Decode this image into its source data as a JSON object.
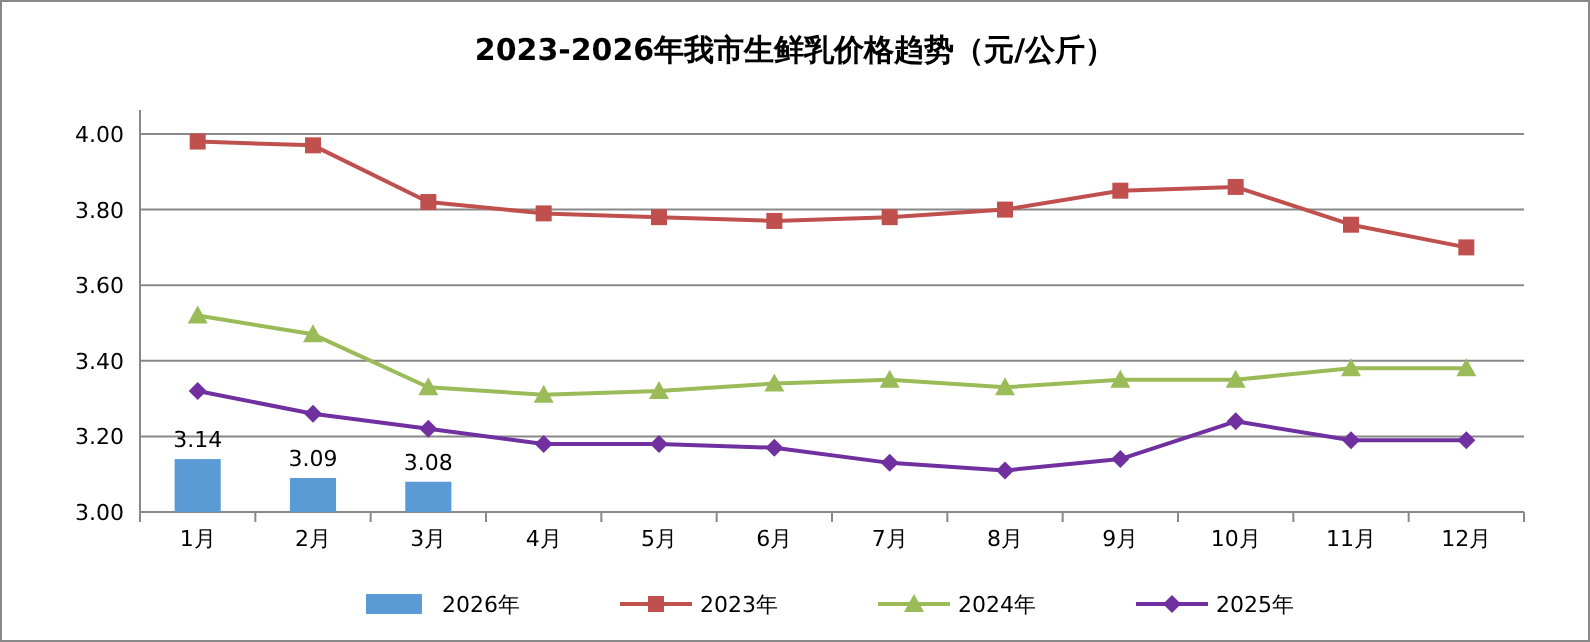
{
  "chart_data": {
    "type": "line",
    "title": "2023-2026年我市生鲜乳价格趋势（元/公斤）",
    "categories": [
      "1月",
      "2月",
      "3月",
      "4月",
      "5月",
      "6月",
      "7月",
      "8月",
      "9月",
      "10月",
      "11月",
      "12月"
    ],
    "ylim": [
      3.0,
      4.0
    ],
    "yticks": [
      {
        "value": 3.0,
        "label": "3.00"
      },
      {
        "value": 3.2,
        "label": "3.20"
      },
      {
        "value": 3.4,
        "label": "3.40"
      },
      {
        "value": 3.6,
        "label": "3.60"
      },
      {
        "value": 3.8,
        "label": "3.80"
      },
      {
        "value": 4.0,
        "label": "4.00"
      }
    ],
    "grid": "y",
    "legend": "bottom",
    "series": [
      {
        "name": "2026年",
        "type": "bar",
        "color": "#5b9bd5",
        "values": [
          3.14,
          3.09,
          3.08,
          null,
          null,
          null,
          null,
          null,
          null,
          null,
          null,
          null
        ],
        "value_labels": [
          "3.14",
          "3.09",
          "3.08",
          null,
          null,
          null,
          null,
          null,
          null,
          null,
          null,
          null
        ]
      },
      {
        "name": "2023年",
        "color": "#c0504d",
        "marker": "square",
        "values": [
          3.98,
          3.97,
          3.82,
          3.79,
          3.78,
          3.77,
          3.78,
          3.8,
          3.85,
          3.86,
          3.76,
          3.7
        ]
      },
      {
        "name": "2024年",
        "color": "#9bbb59",
        "marker": "triangle",
        "values": [
          3.52,
          3.47,
          3.33,
          3.31,
          3.32,
          3.34,
          3.35,
          3.33,
          3.35,
          3.35,
          3.38,
          3.38
        ]
      },
      {
        "name": "2025年",
        "color": "#7030a0",
        "marker": "diamond",
        "values": [
          3.32,
          3.26,
          3.22,
          3.18,
          3.18,
          3.17,
          3.13,
          3.11,
          3.14,
          3.24,
          3.19,
          3.19
        ]
      }
    ]
  }
}
